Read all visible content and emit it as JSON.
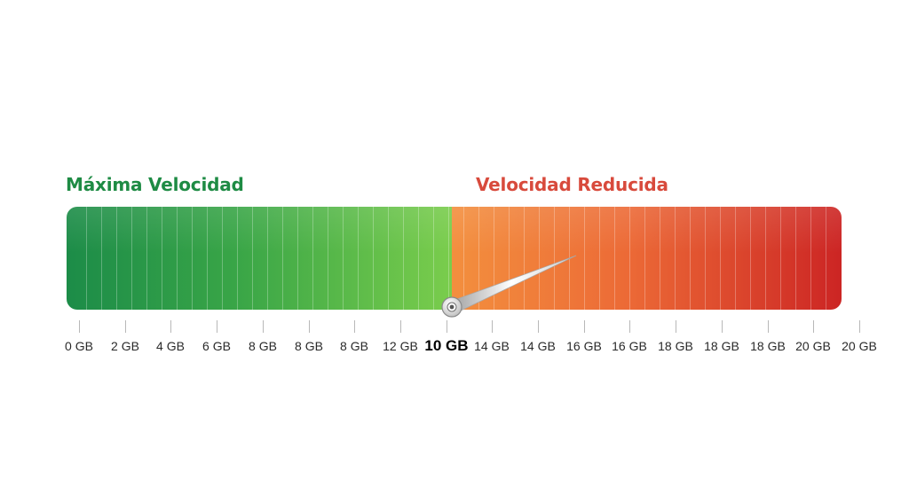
{
  "zones": {
    "left_label": "Máxima Velocidad",
    "right_label": "Velocidad Reducida",
    "left_color": "#1e8b44",
    "right_color": "#d84a3c"
  },
  "scale": {
    "tick_labels": [
      "0 GB",
      "2 GB",
      "4 GB",
      "6 GB",
      "8 GB",
      "8 GB",
      "8 GB",
      "12 GB",
      "10 GB",
      "14 GB",
      "14 GB",
      "16 GB",
      "16 GB",
      "18 GB",
      "18 GB",
      "18 GB",
      "20 GB",
      "20 GB"
    ],
    "current_label": "10 GB",
    "current_index": 8
  },
  "needle": {
    "icon": "gauge-needle-icon",
    "pivot_icon": "needle-pivot-icon"
  }
}
